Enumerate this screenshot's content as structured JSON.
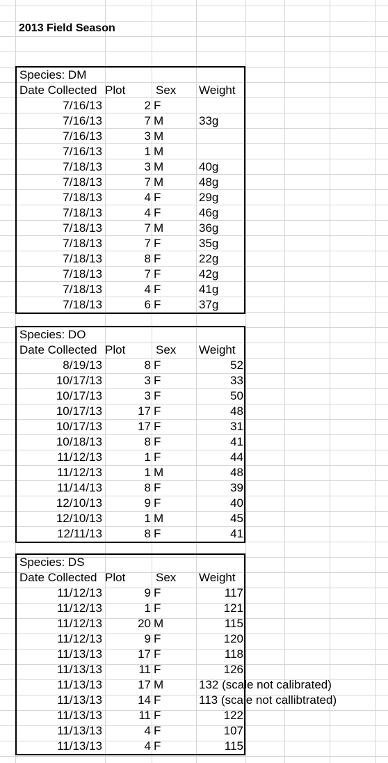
{
  "sheet": {
    "title": "2013 Field Season",
    "columns": {
      "date": "Date Collected",
      "plot": "Plot",
      "sex": "Sex",
      "weight": "Weight"
    },
    "tables": [
      {
        "species": "Species: DM",
        "rows": [
          {
            "date": "7/16/13",
            "plot": "2",
            "sex": "F",
            "weight": ""
          },
          {
            "date": "7/16/13",
            "plot": "7",
            "sex": "M",
            "weight": "33g"
          },
          {
            "date": "7/16/13",
            "plot": "3",
            "sex": "M",
            "weight": ""
          },
          {
            "date": "7/16/13",
            "plot": "1",
            "sex": "M",
            "weight": ""
          },
          {
            "date": "7/18/13",
            "plot": "3",
            "sex": "M",
            "weight": "40g"
          },
          {
            "date": "7/18/13",
            "plot": "7",
            "sex": "M",
            "weight": "48g"
          },
          {
            "date": "7/18/13",
            "plot": "4",
            "sex": "F",
            "weight": "29g"
          },
          {
            "date": "7/18/13",
            "plot": "4",
            "sex": "F",
            "weight": "46g"
          },
          {
            "date": "7/18/13",
            "plot": "7",
            "sex": "M",
            "weight": "36g"
          },
          {
            "date": "7/18/13",
            "plot": "7",
            "sex": "F",
            "weight": "35g"
          },
          {
            "date": "7/18/13",
            "plot": "8",
            "sex": "F",
            "weight": "22g"
          },
          {
            "date": "7/18/13",
            "plot": "7",
            "sex": "F",
            "weight": "42g"
          },
          {
            "date": "7/18/13",
            "plot": "4",
            "sex": "F",
            "weight": "41g"
          },
          {
            "date": "7/18/13",
            "plot": "6",
            "sex": "F",
            "weight": "37g"
          }
        ]
      },
      {
        "species": "Species: DO",
        "rows": [
          {
            "date": "8/19/13",
            "plot": "8",
            "sex": "F",
            "weight": "52"
          },
          {
            "date": "10/17/13",
            "plot": "3",
            "sex": "F",
            "weight": "33"
          },
          {
            "date": "10/17/13",
            "plot": "3",
            "sex": "F",
            "weight": "50"
          },
          {
            "date": "10/17/13",
            "plot": "17",
            "sex": "F",
            "weight": "48"
          },
          {
            "date": "10/17/13",
            "plot": "17",
            "sex": "F",
            "weight": "31"
          },
          {
            "date": "10/18/13",
            "plot": "8",
            "sex": "F",
            "weight": "41"
          },
          {
            "date": "11/12/13",
            "plot": "1",
            "sex": "F",
            "weight": "44"
          },
          {
            "date": "11/12/13",
            "plot": "1",
            "sex": "M",
            "weight": "48"
          },
          {
            "date": "11/14/13",
            "plot": "8",
            "sex": "F",
            "weight": "39"
          },
          {
            "date": "12/10/13",
            "plot": "9",
            "sex": "F",
            "weight": "40"
          },
          {
            "date": "12/10/13",
            "plot": "1",
            "sex": "M",
            "weight": "45"
          },
          {
            "date": "12/11/13",
            "plot": "8",
            "sex": "F",
            "weight": "41"
          }
        ]
      },
      {
        "species": "Species: DS",
        "rows": [
          {
            "date": "11/12/13",
            "plot": "9",
            "sex": "F",
            "weight": "117"
          },
          {
            "date": "11/12/13",
            "plot": "1",
            "sex": "F",
            "weight": "121"
          },
          {
            "date": "11/12/13",
            "plot": "20",
            "sex": "M",
            "weight": "115"
          },
          {
            "date": "11/12/13",
            "plot": "9",
            "sex": "F",
            "weight": "120"
          },
          {
            "date": "11/13/13",
            "plot": "17",
            "sex": "F",
            "weight": "118"
          },
          {
            "date": "11/13/13",
            "plot": "11",
            "sex": "F",
            "weight": "126"
          },
          {
            "date": "11/13/13",
            "plot": "17",
            "sex": "M",
            "weight": "132 (scale not calibrated)"
          },
          {
            "date": "11/13/13",
            "plot": "14",
            "sex": "F",
            "weight": "113 (scale not callibtrated)"
          },
          {
            "date": "11/13/13",
            "plot": "11",
            "sex": "F",
            "weight": "122"
          },
          {
            "date": "11/13/13",
            "plot": "4",
            "sex": "F",
            "weight": "107"
          },
          {
            "date": "11/13/13",
            "plot": "4",
            "sex": "F",
            "weight": "115"
          }
        ]
      }
    ]
  }
}
